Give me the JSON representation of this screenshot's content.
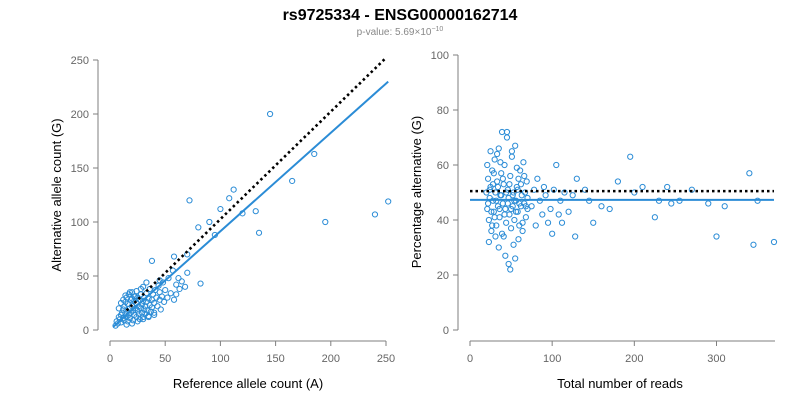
{
  "header": {
    "title": "rs9725334 - ENSG00000162714",
    "subtitle_prefix": "p-value: 5.69×10",
    "subtitle_exp": "−10"
  },
  "colors": {
    "points": "#2b8cd6",
    "fit_line": "#2b8cd6",
    "reference_line": "#000000",
    "axis": "#7f7f7f"
  },
  "chart_data": [
    {
      "type": "scatter",
      "title": "",
      "xlabel": "Reference allele count (A)",
      "ylabel": "Alternative allele count (G)",
      "xlim": [
        0,
        250
      ],
      "ylim": [
        0,
        250
      ],
      "xticks": [
        0,
        50,
        100,
        150,
        200,
        250
      ],
      "yticks": [
        0,
        50,
        100,
        150,
        200,
        250
      ],
      "grid": false,
      "lines": [
        {
          "name": "fit",
          "style": "solid",
          "x": [
            3,
            252
          ],
          "y": [
            3,
            230
          ]
        },
        {
          "name": "reference",
          "style": "dotted",
          "x": [
            15,
            250
          ],
          "y": [
            18,
            252
          ]
        }
      ],
      "points": [
        [
          5,
          4
        ],
        [
          6,
          8
        ],
        [
          7,
          6
        ],
        [
          8,
          12
        ],
        [
          9,
          10
        ],
        [
          10,
          14
        ],
        [
          10,
          7
        ],
        [
          11,
          16
        ],
        [
          12,
          11
        ],
        [
          12,
          19
        ],
        [
          13,
          9
        ],
        [
          13,
          22
        ],
        [
          14,
          15
        ],
        [
          14,
          26
        ],
        [
          15,
          12
        ],
        [
          15,
          30
        ],
        [
          15,
          18
        ],
        [
          16,
          8
        ],
        [
          16,
          24
        ],
        [
          17,
          14
        ],
        [
          17,
          33
        ],
        [
          18,
          20
        ],
        [
          18,
          11
        ],
        [
          19,
          28
        ],
        [
          19,
          16
        ],
        [
          20,
          35
        ],
        [
          20,
          22
        ],
        [
          21,
          9
        ],
        [
          21,
          18
        ],
        [
          22,
          27
        ],
        [
          22,
          14
        ],
        [
          23,
          31
        ],
        [
          23,
          20
        ],
        [
          24,
          12
        ],
        [
          24,
          25
        ],
        [
          25,
          18
        ],
        [
          25,
          30
        ],
        [
          26,
          22
        ],
        [
          26,
          15
        ],
        [
          27,
          28
        ],
        [
          27,
          10
        ],
        [
          28,
          20
        ],
        [
          28,
          33
        ],
        [
          29,
          16
        ],
        [
          29,
          24
        ],
        [
          30,
          27
        ],
        [
          30,
          12
        ],
        [
          31,
          19
        ],
        [
          31,
          30
        ],
        [
          32,
          22
        ],
        [
          32,
          15
        ],
        [
          33,
          26
        ],
        [
          33,
          34
        ],
        [
          34,
          18
        ],
        [
          35,
          29
        ],
        [
          35,
          13
        ],
        [
          36,
          23
        ],
        [
          36,
          38
        ],
        [
          37,
          17
        ],
        [
          38,
          28
        ],
        [
          38,
          21
        ],
        [
          39,
          33
        ],
        [
          40,
          25
        ],
        [
          40,
          16
        ],
        [
          41,
          37
        ],
        [
          42,
          30
        ],
        [
          43,
          22
        ],
        [
          44,
          41
        ],
        [
          45,
          28
        ],
        [
          45,
          35
        ],
        [
          46,
          19
        ],
        [
          47,
          31
        ],
        [
          48,
          44
        ],
        [
          49,
          26
        ],
        [
          50,
          37
        ],
        [
          52,
          30
        ],
        [
          53,
          48
        ],
        [
          55,
          34
        ],
        [
          57,
          55
        ],
        [
          58,
          28
        ],
        [
          60,
          42
        ],
        [
          60,
          33
        ],
        [
          62,
          48
        ],
        [
          63,
          38
        ],
        [
          65,
          45
        ],
        [
          68,
          40
        ],
        [
          70,
          53
        ],
        [
          8,
          20
        ],
        [
          10,
          25
        ],
        [
          12,
          28
        ],
        [
          14,
          32
        ],
        [
          18,
          35
        ],
        [
          20,
          29
        ],
        [
          22,
          31
        ],
        [
          24,
          36
        ],
        [
          15,
          5
        ],
        [
          20,
          6
        ],
        [
          25,
          8
        ],
        [
          30,
          10
        ],
        [
          35,
          12
        ],
        [
          40,
          14
        ],
        [
          45,
          46
        ],
        [
          38,
          64
        ],
        [
          58,
          68
        ],
        [
          70,
          70
        ],
        [
          72,
          120
        ],
        [
          80,
          95
        ],
        [
          82,
          43
        ],
        [
          90,
          100
        ],
        [
          95,
          88
        ],
        [
          100,
          112
        ],
        [
          108,
          122
        ],
        [
          112,
          130
        ],
        [
          120,
          108
        ],
        [
          132,
          110
        ],
        [
          135,
          90
        ],
        [
          145,
          200
        ],
        [
          165,
          138
        ],
        [
          185,
          163
        ],
        [
          195,
          100
        ],
        [
          240,
          107
        ],
        [
          252,
          119
        ],
        [
          30,
          40
        ],
        [
          33,
          44
        ],
        [
          28,
          38
        ]
      ]
    },
    {
      "type": "scatter",
      "title": "",
      "xlabel": "Total number of reads",
      "ylabel": "Percentage alternative (G)",
      "xlim": [
        0,
        370
      ],
      "ylim": [
        0,
        100
      ],
      "xticks": [
        0,
        100,
        200,
        300
      ],
      "yticks": [
        0,
        20,
        40,
        60,
        80,
        100
      ],
      "grid": false,
      "lines": [
        {
          "name": "fit",
          "style": "solid",
          "x": [
            0,
            370
          ],
          "y": [
            47.3,
            47.3
          ]
        },
        {
          "name": "reference",
          "style": "dotted",
          "x": [
            0,
            370
          ],
          "y": [
            50.5,
            50.5
          ]
        }
      ],
      "points": [
        [
          20,
          50
        ],
        [
          21,
          44
        ],
        [
          22,
          55
        ],
        [
          23,
          40
        ],
        [
          24,
          48
        ],
        [
          25,
          52
        ],
        [
          26,
          36
        ],
        [
          27,
          58
        ],
        [
          28,
          47
        ],
        [
          29,
          43
        ],
        [
          30,
          62
        ],
        [
          31,
          50
        ],
        [
          32,
          38
        ],
        [
          33,
          54
        ],
        [
          34,
          45
        ],
        [
          35,
          66
        ],
        [
          36,
          41
        ],
        [
          37,
          49
        ],
        [
          38,
          57
        ],
        [
          39,
          35
        ],
        [
          40,
          46
        ],
        [
          41,
          53
        ],
        [
          42,
          60
        ],
        [
          43,
          44
        ],
        [
          44,
          39
        ],
        [
          45,
          70
        ],
        [
          46,
          51
        ],
        [
          47,
          48
        ],
        [
          48,
          42
        ],
        [
          49,
          56
        ],
        [
          50,
          37
        ],
        [
          51,
          63
        ],
        [
          52,
          45
        ],
        [
          53,
          50
        ],
        [
          54,
          40
        ],
        [
          55,
          67
        ],
        [
          56,
          47
        ],
        [
          57,
          52
        ],
        [
          58,
          43
        ],
        [
          59,
          55
        ],
        [
          60,
          38
        ],
        [
          61,
          58
        ],
        [
          62,
          45
        ],
        [
          63,
          49
        ],
        [
          64,
          36
        ],
        [
          65,
          61
        ],
        [
          66,
          46
        ],
        [
          67,
          50
        ],
        [
          68,
          41
        ],
        [
          69,
          54
        ],
        [
          70,
          44
        ],
        [
          21,
          60
        ],
        [
          23,
          32
        ],
        [
          25,
          65
        ],
        [
          27,
          38
        ],
        [
          29,
          57
        ],
        [
          31,
          34
        ],
        [
          33,
          64
        ],
        [
          35,
          30
        ],
        [
          37,
          61
        ],
        [
          39,
          72
        ],
        [
          41,
          34
        ],
        [
          43,
          27
        ],
        [
          45,
          72
        ],
        [
          47,
          24
        ],
        [
          49,
          22
        ],
        [
          51,
          65
        ],
        [
          53,
          31
        ],
        [
          55,
          26
        ],
        [
          57,
          59
        ],
        [
          59,
          33
        ],
        [
          62,
          53
        ],
        [
          64,
          39
        ],
        [
          66,
          56
        ],
        [
          68,
          45
        ],
        [
          70,
          48
        ],
        [
          22,
          46
        ],
        [
          24,
          51
        ],
        [
          26,
          43
        ],
        [
          28,
          53
        ],
        [
          30,
          41
        ],
        [
          32,
          47
        ],
        [
          34,
          52
        ],
        [
          36,
          44
        ],
        [
          38,
          49
        ],
        [
          40,
          55
        ],
        [
          42,
          42
        ],
        [
          44,
          50
        ],
        [
          46,
          46
        ],
        [
          48,
          53
        ],
        [
          50,
          44
        ],
        [
          52,
          49
        ],
        [
          54,
          47
        ],
        [
          56,
          43
        ],
        [
          58,
          51
        ],
        [
          60,
          46
        ],
        [
          75,
          45
        ],
        [
          78,
          51
        ],
        [
          80,
          38
        ],
        [
          82,
          55
        ],
        [
          85,
          47
        ],
        [
          88,
          42
        ],
        [
          90,
          52
        ],
        [
          92,
          49
        ],
        [
          95,
          39
        ],
        [
          98,
          44
        ],
        [
          100,
          35
        ],
        [
          102,
          51
        ],
        [
          105,
          60
        ],
        [
          108,
          42
        ],
        [
          110,
          47
        ],
        [
          112,
          39
        ],
        [
          115,
          50
        ],
        [
          120,
          43
        ],
        [
          125,
          49
        ],
        [
          128,
          34
        ],
        [
          130,
          55
        ],
        [
          140,
          51
        ],
        [
          145,
          47
        ],
        [
          150,
          39
        ],
        [
          160,
          45
        ],
        [
          170,
          44
        ],
        [
          180,
          54
        ],
        [
          195,
          63
        ],
        [
          200,
          50
        ],
        [
          210,
          52
        ],
        [
          225,
          41
        ],
        [
          230,
          47
        ],
        [
          240,
          52
        ],
        [
          245,
          46
        ],
        [
          255,
          47
        ],
        [
          270,
          51
        ],
        [
          290,
          46
        ],
        [
          300,
          34
        ],
        [
          310,
          45
        ],
        [
          340,
          57
        ],
        [
          345,
          31
        ],
        [
          350,
          47
        ],
        [
          370,
          32
        ]
      ]
    }
  ]
}
